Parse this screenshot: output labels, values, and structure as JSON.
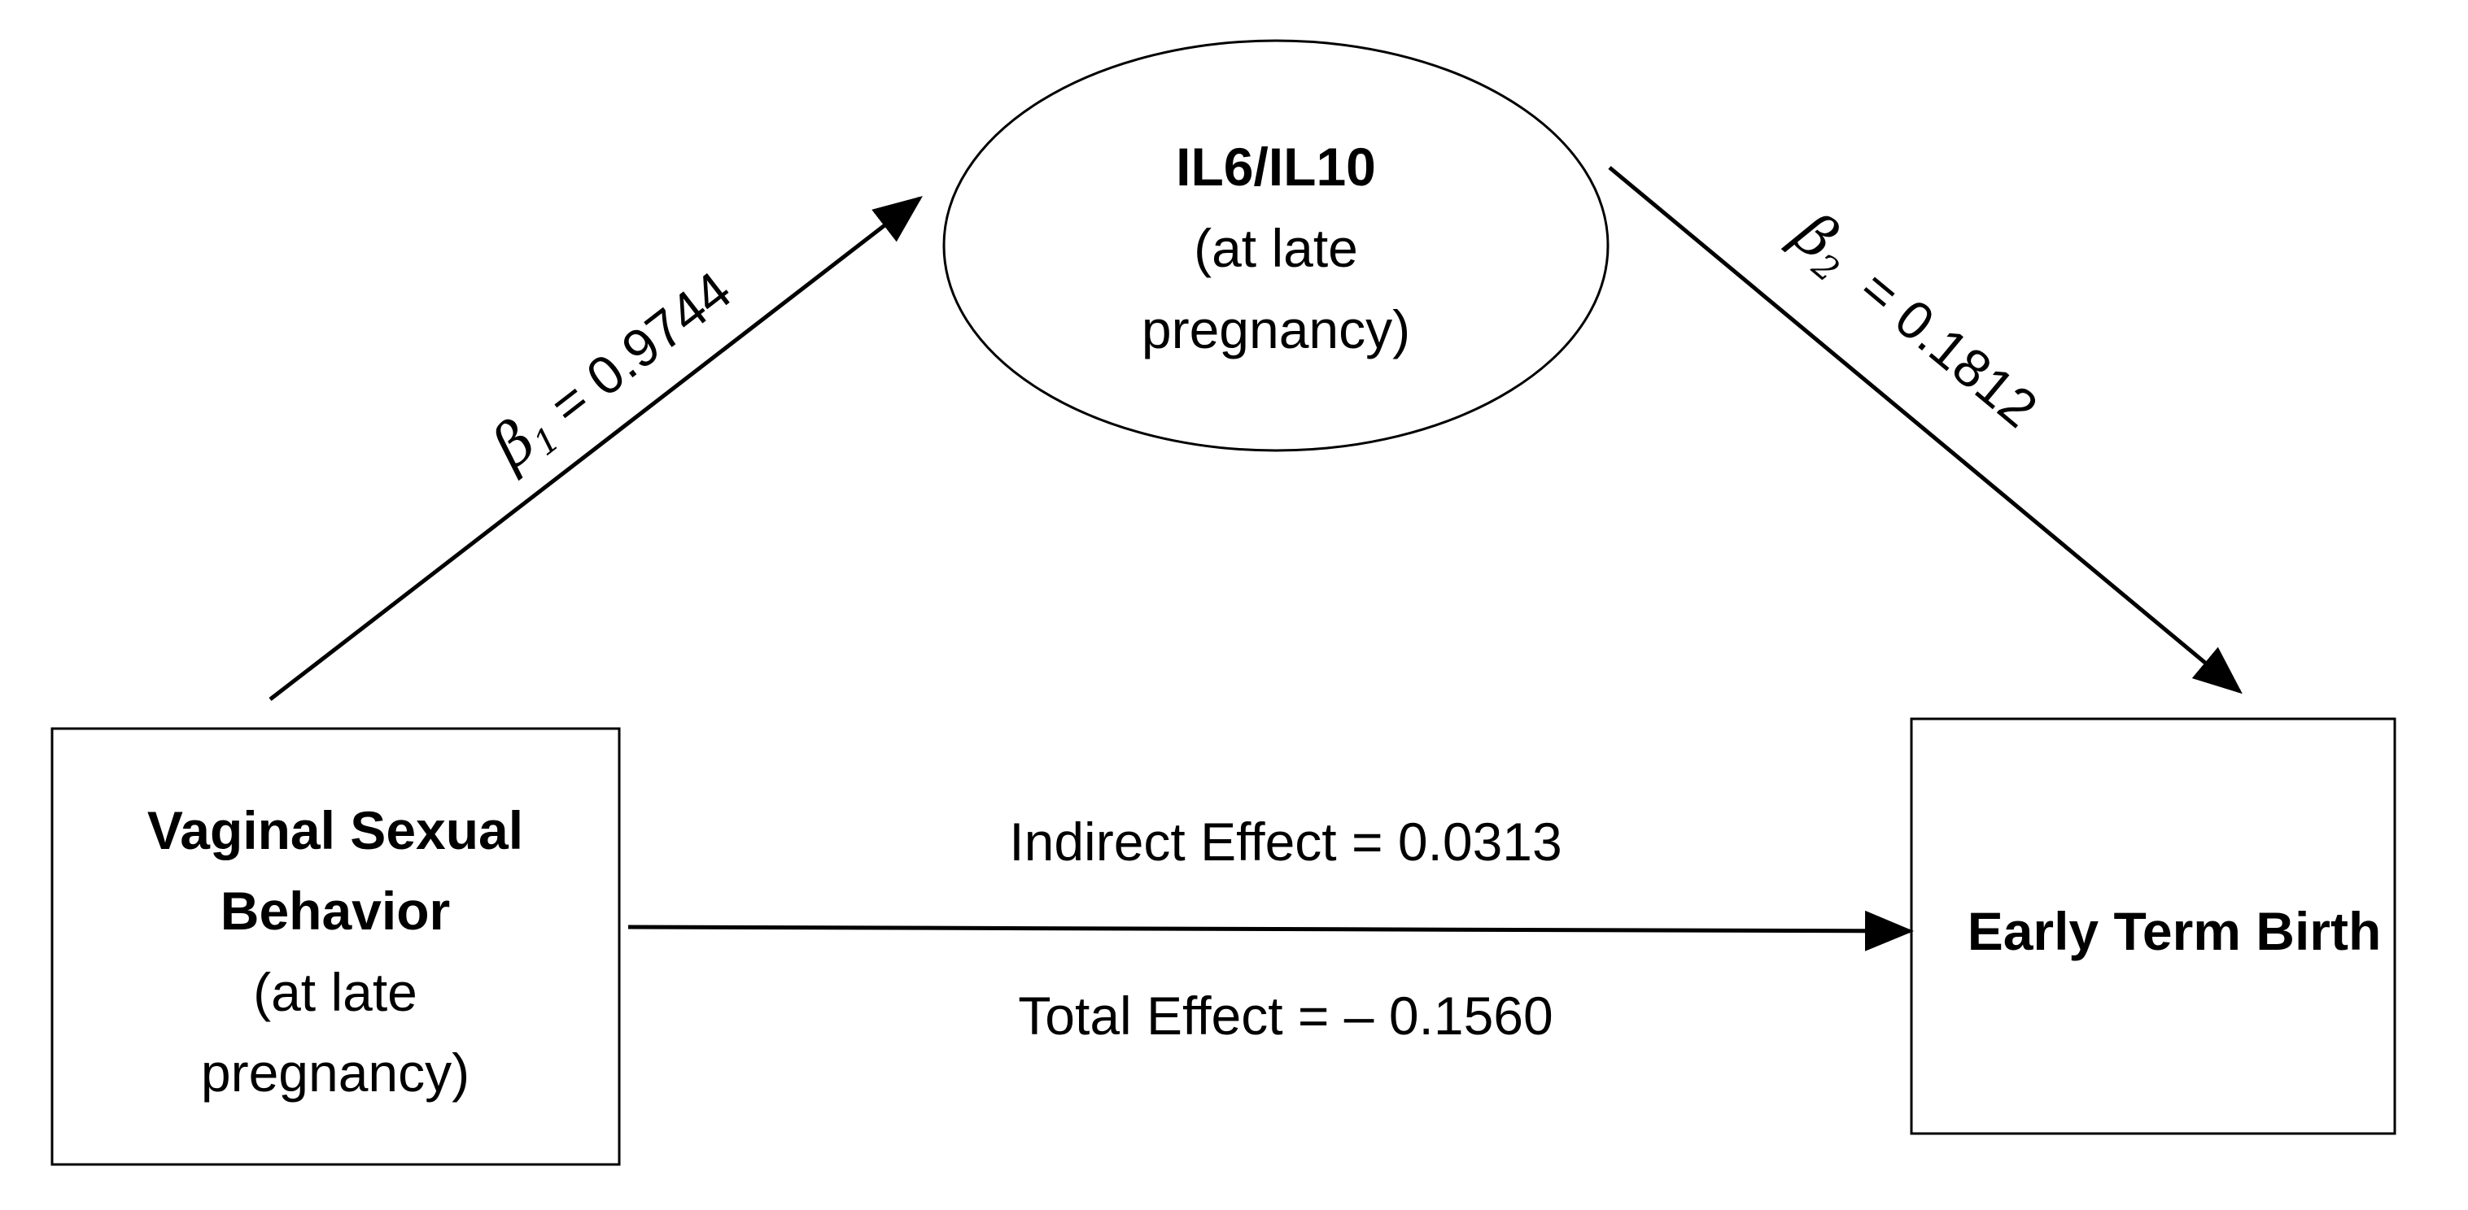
{
  "nodes": {
    "mediator": {
      "title": "IL6/IL10",
      "line2": "(at late",
      "line3": "pregnancy)"
    },
    "exposure": {
      "title1": "Vaginal Sexual",
      "title2": "Behavior",
      "line3": "(at late",
      "line4": "pregnancy)"
    },
    "outcome": {
      "title": "Early Term Birth"
    }
  },
  "paths": {
    "a": {
      "symbol": "β",
      "subscript": "1",
      "equals_value": " = 0.9744"
    },
    "b": {
      "symbol": "β",
      "subscript": "2",
      "equals_value": "  = 0.1812"
    },
    "direct": {
      "indirect_effect_label": "Indirect Effect = 0.0313",
      "total_effect_label": "Total Effect = – 0.1560"
    }
  }
}
